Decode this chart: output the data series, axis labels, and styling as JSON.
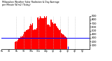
{
  "title": "Milwaukee Weather Solar Radiation & Day Average per Minute W/m2 (Today)",
  "bg_color": "#ffffff",
  "bar_color": "#ff0000",
  "avg_line_color": "#0000ff",
  "current_marker_color": "#0000ff",
  "grid_color": "#bbbbbb",
  "ylim": [
    0,
    900
  ],
  "ytick_values": [
    100,
    200,
    300,
    400,
    500,
    600,
    700,
    800,
    900
  ],
  "num_points": 144,
  "peak_index": 68,
  "peak_value": 870,
  "avg_value": 290,
  "current_index": 108,
  "sunrise_index": 22,
  "sigma": 26
}
